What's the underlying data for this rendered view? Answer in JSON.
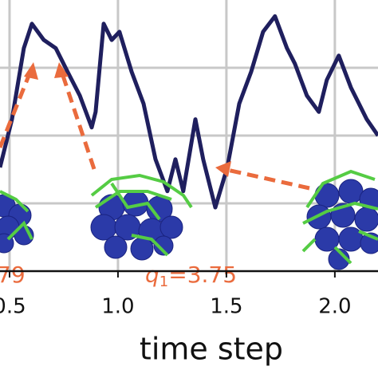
{
  "chart_data": {
    "type": "line",
    "x_label": "time step",
    "x": [
      0.456,
      0.511,
      0.566,
      0.603,
      0.658,
      0.713,
      0.768,
      0.824,
      0.879,
      0.897,
      0.934,
      0.971,
      1.007,
      1.063,
      1.118,
      1.173,
      1.228,
      1.265,
      1.301,
      1.357,
      1.393,
      1.449,
      1.504,
      1.559,
      1.614,
      1.669,
      1.724,
      1.779,
      1.816,
      1.871,
      1.926,
      1.963,
      2.018,
      2.074,
      2.147,
      2.199
    ],
    "series": [
      {
        "color": "#1f1f5e",
        "values": [
          1.53,
          2.24,
          3.29,
          3.65,
          3.41,
          3.29,
          2.94,
          2.59,
          2.12,
          2.35,
          3.65,
          3.41,
          3.53,
          2.94,
          2.47,
          1.65,
          1.18,
          1.65,
          1.18,
          2.24,
          1.65,
          0.94,
          1.53,
          2.47,
          2.94,
          3.53,
          3.76,
          3.29,
          3.06,
          2.59,
          2.35,
          2.82,
          3.18,
          2.71,
          2.24,
          2.0
        ]
      }
    ],
    "xlim": [
      0.456,
      2.199
    ],
    "ylim": [
      0,
      4
    ],
    "xticks": [
      0.5,
      {
        "value": 1,
        "label": "1.0"
      },
      1.5,
      {
        "value": 2,
        "label": "2.0"
      }
    ],
    "yticks": [
      1,
      2,
      3
    ],
    "grid": true,
    "annotations": [
      {
        "text": "79"
      },
      {
        "text": "q",
        "subscript": "1",
        "suffix": "=3.75"
      }
    ],
    "annotation_color": "#ea6b3d"
  }
}
